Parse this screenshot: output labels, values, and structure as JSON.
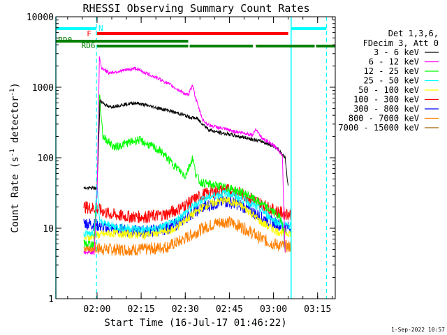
{
  "chart_data": {
    "type": "line",
    "title": "RHESSI Observing Summary Count Rates",
    "xlabel": "Start Time (16-Jul-17 01:46:22)",
    "ylabel": "Count Rate (s⁻¹ detector⁻¹)",
    "ylabel_main": "Count Rate (s",
    "ylabel_mid": " detector",
    "ylabel_end": ")",
    "ylabel_sup": "-1",
    "yscale": "log",
    "ylim": [
      1,
      10000
    ],
    "xlim_minutes": [
      0,
      95
    ],
    "y_ticks": [
      {
        "value": 1,
        "label": "1"
      },
      {
        "value": 10,
        "label": "10"
      },
      {
        "value": 100,
        "label": "100"
      },
      {
        "value": 1000,
        "label": "1000"
      },
      {
        "value": 10000,
        "label": "10000"
      }
    ],
    "x_ticks": [
      {
        "minute": 14,
        "label": "02:00"
      },
      {
        "minute": 29,
        "label": "02:15"
      },
      {
        "minute": 44,
        "label": "02:30"
      },
      {
        "minute": 59,
        "label": "02:45"
      },
      {
        "minute": 74,
        "label": "03:00"
      },
      {
        "minute": 89,
        "label": "03:15"
      }
    ],
    "legend_header": [
      "Det 1,3,6,",
      "FDecim 3, Att 0"
    ],
    "legend_position": "right",
    "series": [
      {
        "name": "3 - 6 keV",
        "color": "#000000",
        "t": [
          9.5,
          14,
          15,
          18,
          22,
          27,
          32,
          38,
          43,
          45,
          48,
          50,
          52,
          55,
          60,
          65,
          70,
          75,
          78,
          79
        ],
        "v": [
          37,
          37,
          650,
          520,
          560,
          600,
          540,
          470,
          410,
          380,
          360,
          300,
          250,
          230,
          210,
          190,
          170,
          140,
          100,
          37
        ]
      },
      {
        "name": "6 - 12 keV",
        "color": "#ff00ff",
        "t": [
          9.5,
          13,
          14,
          14.8,
          15.5,
          18,
          22,
          27,
          32,
          37,
          42,
          45,
          46.5,
          47.5,
          49,
          50,
          52,
          55,
          60,
          65,
          67,
          68,
          70,
          75,
          77,
          78
        ],
        "v": [
          4.5,
          4.5,
          30,
          2700,
          1900,
          1600,
          1700,
          1850,
          1500,
          1200,
          900,
          760,
          1100,
          700,
          450,
          340,
          290,
          270,
          240,
          220,
          210,
          260,
          190,
          140,
          110,
          4
        ]
      },
      {
        "name": "12 - 25 keV",
        "color": "#00ff00",
        "t": [
          9.5,
          13,
          14,
          14.8,
          16,
          20,
          24,
          28,
          32,
          36,
          40,
          44,
          46.5,
          47.5,
          49,
          52,
          55,
          60,
          65,
          70,
          74,
          77,
          78
        ],
        "v": [
          6,
          6,
          40,
          800,
          200,
          140,
          160,
          180,
          150,
          120,
          80,
          55,
          100,
          60,
          45,
          42,
          40,
          36,
          30,
          22,
          17,
          13,
          5
        ]
      },
      {
        "name": "25 - 50 keV",
        "color": "#00ffff",
        "t": [
          9.5,
          13,
          14,
          15,
          20,
          25,
          30,
          35,
          40,
          45,
          50,
          55,
          58,
          60,
          65,
          70,
          74,
          78,
          80
        ],
        "v": [
          8,
          9,
          40,
          12,
          10.5,
          10,
          9.5,
          10,
          12,
          18,
          26,
          30,
          32,
          30,
          24,
          18,
          13,
          11,
          11
        ]
      },
      {
        "name": "50 - 100 keV",
        "color": "#ffff00",
        "t": [
          9.5,
          14,
          20,
          30,
          40,
          45,
          50,
          55,
          58,
          62,
          66,
          70,
          75,
          80
        ],
        "v": [
          7,
          8,
          8.5,
          8,
          9.5,
          14,
          20,
          24,
          25,
          22,
          17,
          12,
          9,
          8.5
        ]
      },
      {
        "name": "100 - 300 keV",
        "color": "#ff0000",
        "t": [
          9.5,
          14,
          18,
          22,
          26,
          30,
          34,
          38,
          42,
          46,
          50,
          55,
          58,
          62,
          66,
          70,
          74,
          78,
          80
        ],
        "v": [
          20,
          19,
          16,
          15,
          14.5,
          14.5,
          15,
          16,
          19,
          24,
          30,
          34,
          35,
          32,
          27,
          22,
          18,
          16,
          16
        ]
      },
      {
        "name": "300 - 800 keV",
        "color": "#0000ff",
        "t": [
          9.5,
          14,
          18,
          22,
          26,
          30,
          34,
          38,
          42,
          46,
          50,
          55,
          58,
          62,
          66,
          70,
          74,
          78,
          80
        ],
        "v": [
          12,
          11,
          10,
          9.5,
          9,
          9,
          9.3,
          10,
          12,
          16,
          20,
          23,
          24,
          22,
          18,
          14,
          12,
          10.5,
          10
        ]
      },
      {
        "name": "800 - 7000 keV",
        "color": "#ff8000",
        "t": [
          9.5,
          14,
          18,
          22,
          26,
          30,
          34,
          38,
          42,
          46,
          50,
          55,
          58,
          62,
          66,
          70,
          74,
          78,
          80
        ],
        "v": [
          5.3,
          5.2,
          5,
          5,
          5,
          5,
          5.2,
          5.5,
          6.5,
          8,
          10,
          12,
          12.5,
          11,
          9,
          7,
          6,
          5.5,
          5.5
        ]
      },
      {
        "name": "7000 - 15000 keV",
        "color": "#a06000",
        "t": [],
        "v": []
      }
    ],
    "annotations": {
      "night_label": "N",
      "flare_label": "F",
      "rd0_label": "RD0",
      "rd6_label": "RD6",
      "night_color": "#00ffff",
      "flare_color": "#ff0000",
      "rd_color": "#008000",
      "night_segments": [
        [
          0,
          13.8
        ],
        [
          80,
          92
        ]
      ],
      "flare_segments": [
        [
          14,
          79
        ]
      ],
      "rd0_segments": [
        [
          0,
          45
        ]
      ],
      "rd6_segments": [
        [
          14,
          45
        ],
        [
          45.5,
          67
        ],
        [
          68,
          88
        ],
        [
          88.5,
          95
        ]
      ],
      "vlines_solid": [
        0,
        80
      ],
      "vlines_dashed": [
        13.8,
        92
      ]
    }
  },
  "timestamp": "1-Sep-2022 10:57"
}
